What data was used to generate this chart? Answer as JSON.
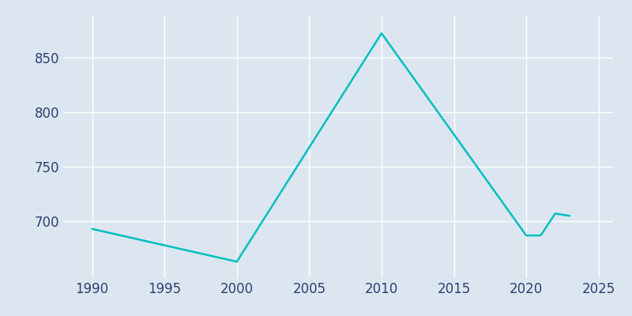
{
  "years": [
    1990,
    2000,
    2010,
    2020,
    2021,
    2022,
    2023
  ],
  "population": [
    693,
    663,
    872,
    687,
    687,
    707,
    705
  ],
  "line_color": "#00BFBF",
  "plot_bg_color": "#dce6f0",
  "fig_bg_color": "#dce6f0",
  "grid_color": "#ffffff",
  "text_color": "#2e3f6e",
  "xlim": [
    1988,
    2026
  ],
  "ylim": [
    648,
    888
  ],
  "xticks": [
    1990,
    1995,
    2000,
    2005,
    2010,
    2015,
    2020,
    2025
  ],
  "yticks": [
    700,
    750,
    800,
    850
  ],
  "line_width": 1.8,
  "tick_labelsize": 12
}
